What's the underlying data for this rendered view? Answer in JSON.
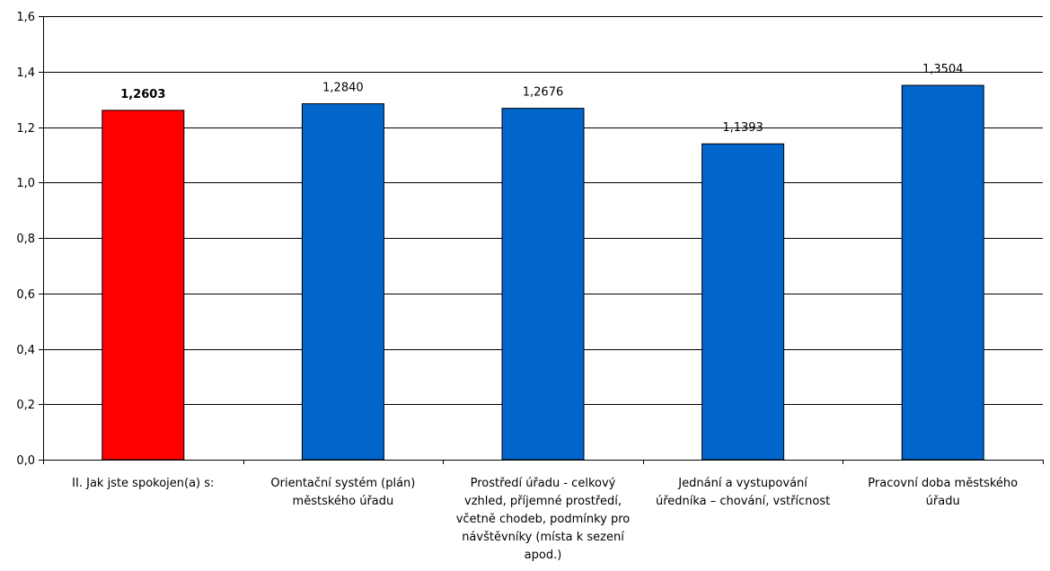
{
  "chart_data": {
    "type": "bar",
    "categories": [
      [
        "II. Jak jste spokojen(a) s:"
      ],
      [
        "Orientační systém (plán)",
        "městského úřadu"
      ],
      [
        "Prostředí úřadu - celkový",
        "vzhled, příjemné prostředí,",
        "včetně chodeb, podmínky pro",
        "návštěvníky (místa k sezení",
        "apod.)"
      ],
      [
        "Jednání a vystupování",
        "úředníka – chování, vstřícnost"
      ],
      [
        "Pracovní doba městského",
        "úřadu"
      ]
    ],
    "values": [
      1.2603,
      1.284,
      1.2676,
      1.1393,
      1.3504
    ],
    "data_labels": [
      "1,2603",
      "1,2840",
      "1,2676",
      "1,1393",
      "1,3504"
    ],
    "bar_colors": [
      "#ff0000",
      "#0066cc",
      "#0066cc",
      "#0066cc",
      "#0066cc"
    ],
    "highlight_index": 0,
    "ylim": [
      0,
      1.6
    ],
    "yticks": [
      0,
      0.2,
      0.4,
      0.6,
      0.8,
      1.0,
      1.2,
      1.4,
      1.6
    ],
    "ytick_labels": [
      "0,0",
      "0,2",
      "0,4",
      "0,6",
      "0,8",
      "1,0",
      "1,2",
      "1,4",
      "1,6"
    ],
    "title": "",
    "xlabel": "",
    "ylabel": "",
    "grid": true,
    "legend": "none"
  }
}
